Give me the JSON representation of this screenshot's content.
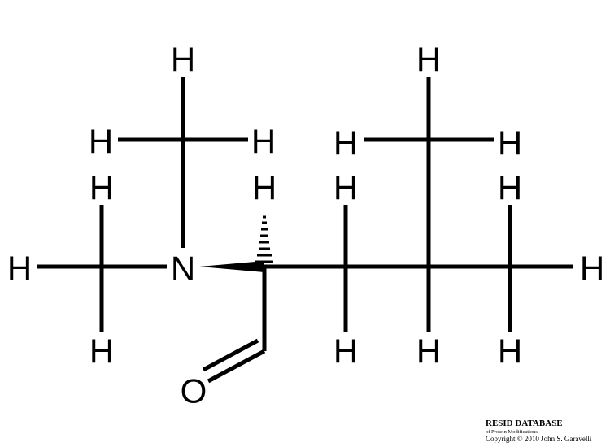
{
  "molecule": {
    "atoms": {
      "h_top_methyl_n": "H",
      "h_left_methyl_n_upper": "H",
      "h_right_methyl_n_upper": "H",
      "h_top_alpha": "H",
      "h_top_ch2": "H",
      "h_top_far_methyl": "H",
      "h_left_far_methyl": "H",
      "h_right_far_methyl": "H",
      "h_top_left_methyl": "H",
      "h_top_right_methyl": "H",
      "h_far_left": "H",
      "nitrogen": "N",
      "h_far_right": "H",
      "h_bottom_left_methyl": "H",
      "h_bottom_ch2": "H",
      "h_bottom_ch": "H",
      "h_bottom_right_methyl": "H",
      "oxygen": "O"
    }
  },
  "watermark": {
    "title": "RESID DATABASE",
    "subtitle": "of Protein Modifications",
    "copyright": "Copyright © 2010 John S. Garavelli"
  }
}
